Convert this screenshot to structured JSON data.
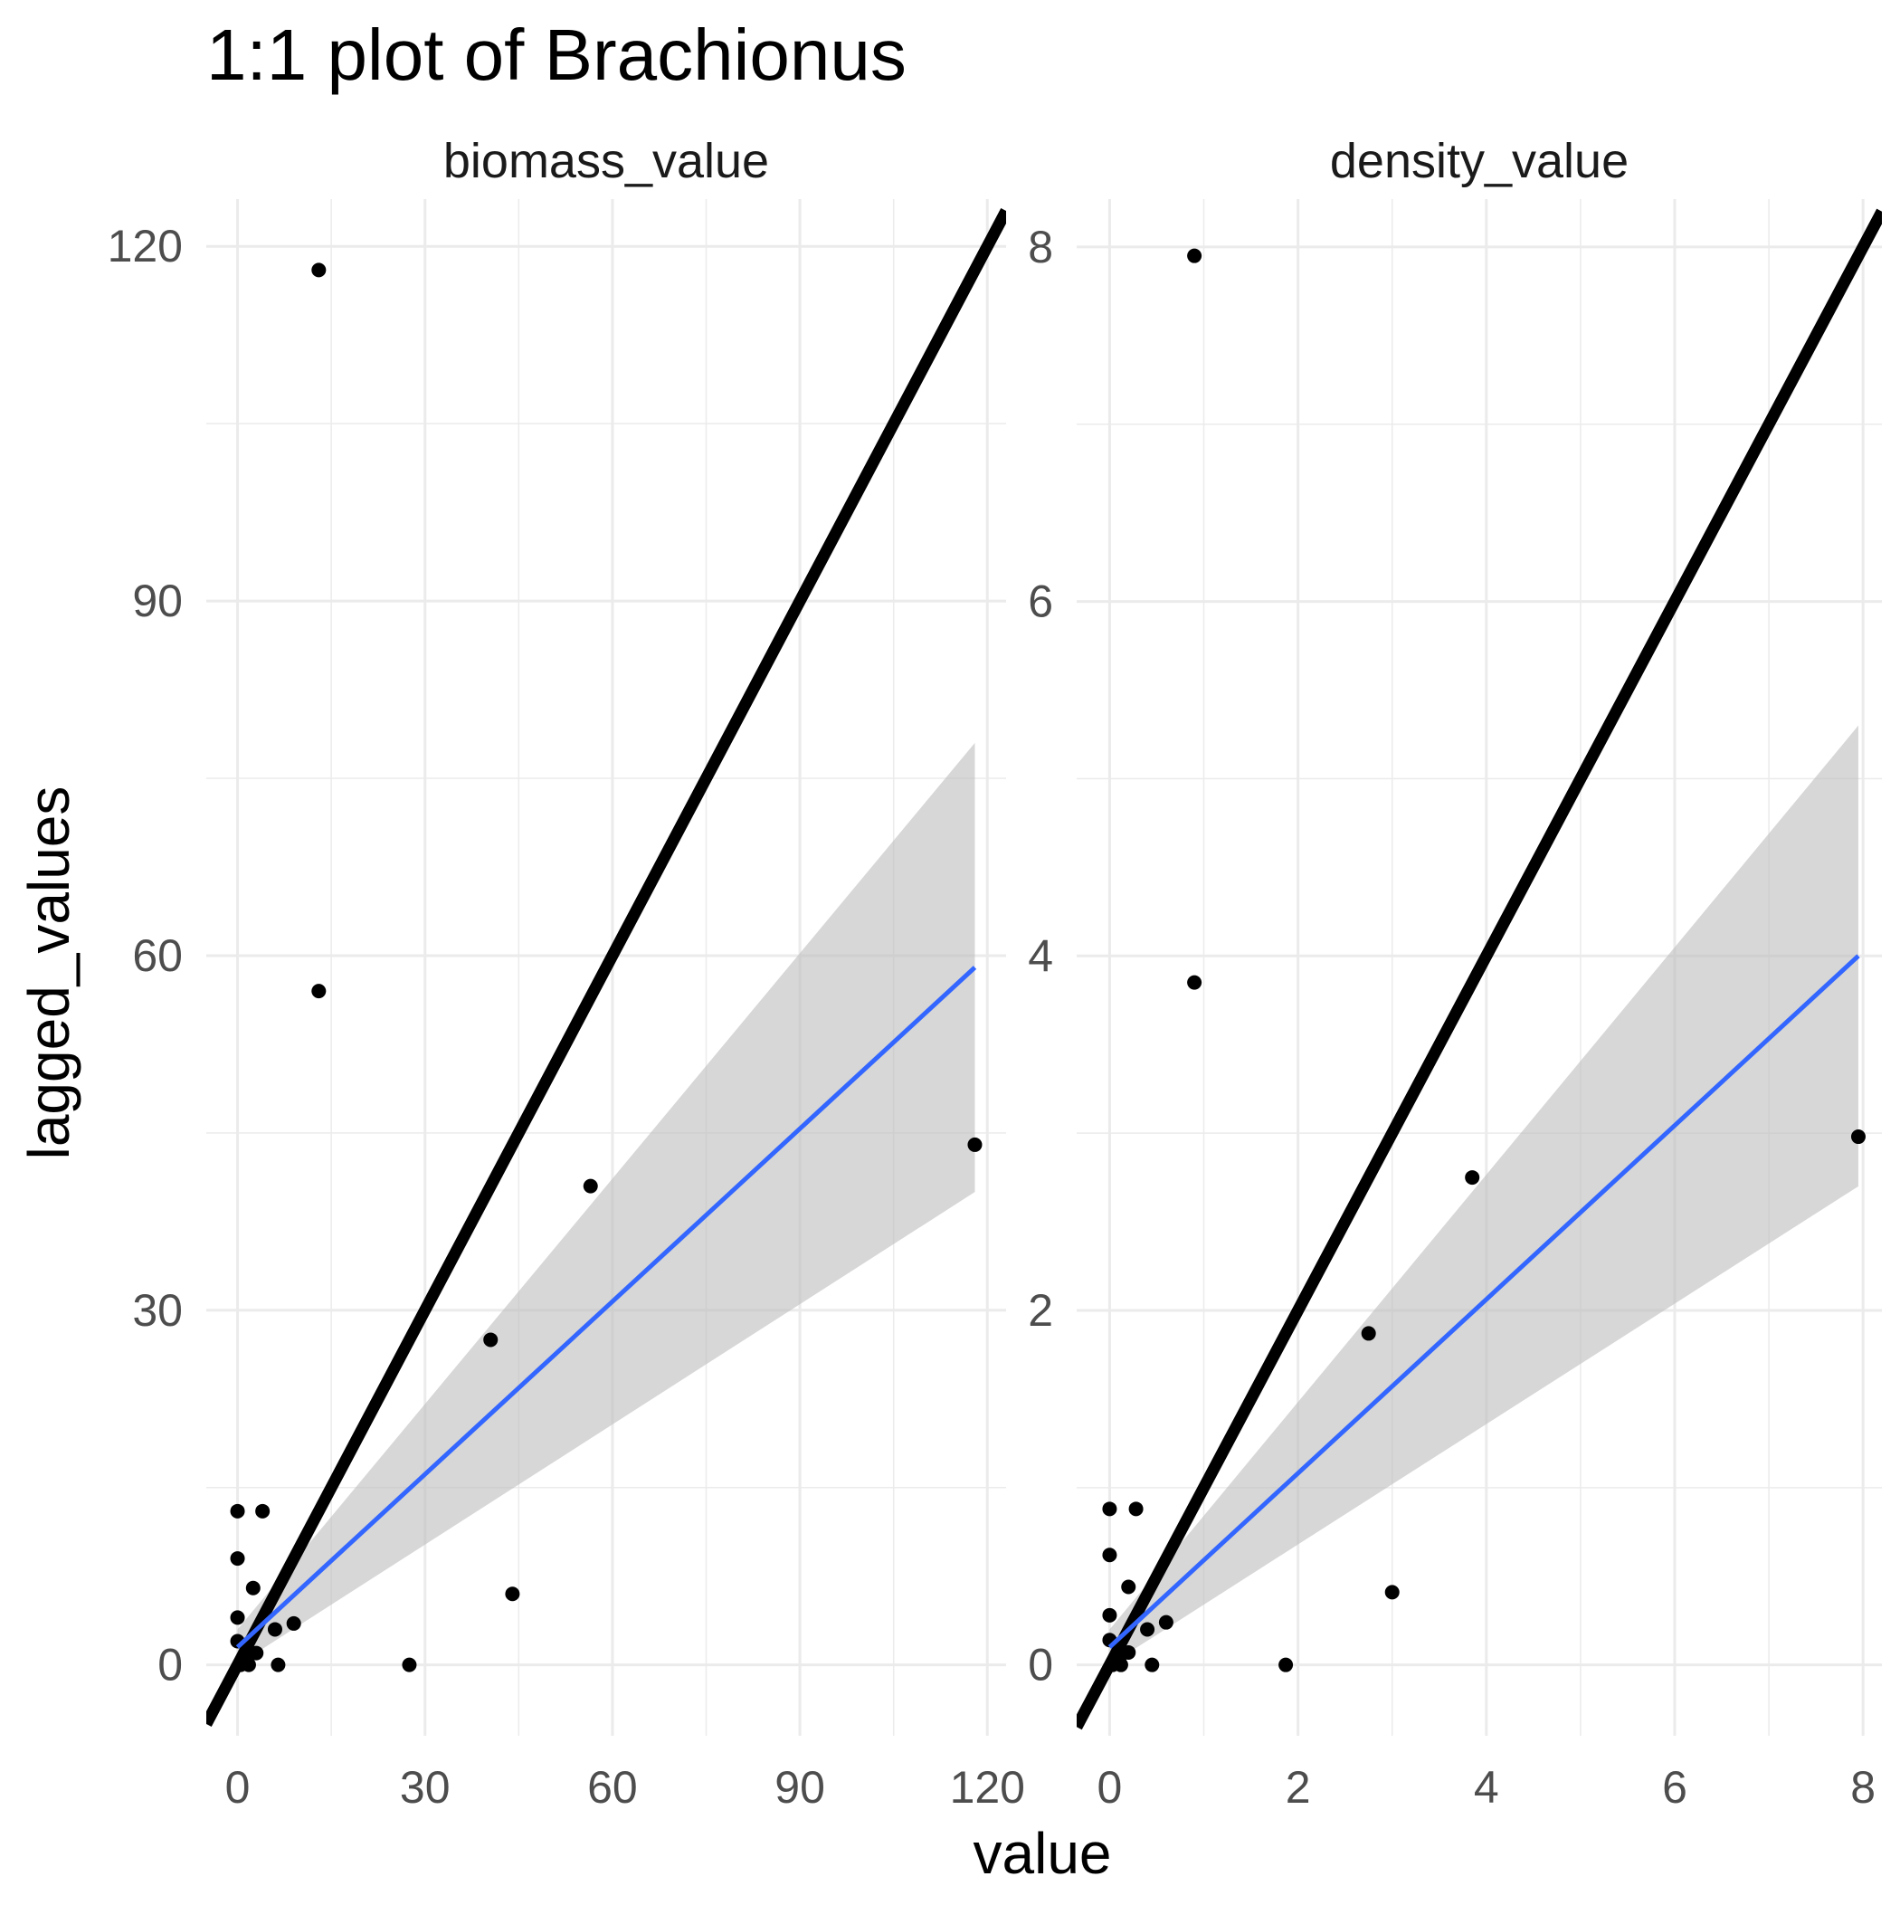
{
  "chart_data": {
    "type": "scatter",
    "title": "1:1 plot of Brachionus",
    "xlabel": "value",
    "ylabel": "lagged_values",
    "grid": true,
    "legend": "none",
    "colors": {
      "points": "#000000",
      "identity_line": "#000000",
      "fit_line": "#3366ff",
      "confidence_band": "#bdbdbd",
      "grid": "#ebebeb"
    },
    "panels": [
      {
        "name": "biomass_value",
        "xlim": [
          -5,
          123
        ],
        "ylim": [
          -6,
          124
        ],
        "x_ticks": [
          0,
          30,
          60,
          90,
          120
        ],
        "y_ticks": [
          0,
          30,
          60,
          90,
          120
        ],
        "x_tick_labels": [
          "0",
          "30",
          "60",
          "90",
          "120"
        ],
        "y_tick_labels": [
          "0",
          "30",
          "60",
          "90",
          "120"
        ],
        "points": [
          {
            "x": 13,
            "y": 118
          },
          {
            "x": 13,
            "y": 57
          },
          {
            "x": 56.5,
            "y": 40.5
          },
          {
            "x": 118,
            "y": 44
          },
          {
            "x": 40.5,
            "y": 27.5
          },
          {
            "x": 44,
            "y": 6
          },
          {
            "x": 27.5,
            "y": 0
          },
          {
            "x": 0,
            "y": 13
          },
          {
            "x": 4,
            "y": 13
          },
          {
            "x": 0,
            "y": 9
          },
          {
            "x": 2.5,
            "y": 6.5
          },
          {
            "x": 0,
            "y": 4
          },
          {
            "x": 9,
            "y": 3.5
          },
          {
            "x": 6,
            "y": 3
          },
          {
            "x": 0,
            "y": 2
          },
          {
            "x": 3,
            "y": 1
          },
          {
            "x": 1.5,
            "y": 0.5
          },
          {
            "x": 0.5,
            "y": 0
          },
          {
            "x": 1.8,
            "y": 0
          },
          {
            "x": 6.5,
            "y": 0
          }
        ],
        "identity_line": {
          "x": [
            -5,
            123
          ],
          "y": [
            -5,
            123
          ]
        },
        "fit": {
          "x": [
            0,
            118
          ],
          "y": [
            1.5,
            59
          ],
          "band_lower": [
            0,
            40
          ],
          "band_upper": [
            3,
            78
          ]
        }
      },
      {
        "name": "density_value",
        "xlim": [
          -0.35,
          8.2
        ],
        "ylim": [
          -0.4,
          8.27
        ],
        "x_ticks": [
          0,
          2,
          4,
          6,
          8
        ],
        "y_ticks": [
          0,
          2,
          4,
          6,
          8
        ],
        "x_tick_labels": [
          "0",
          "2",
          "4",
          "6",
          "8"
        ],
        "y_tick_labels": [
          "0",
          "2",
          "4",
          "6",
          "8"
        ],
        "points": [
          {
            "x": 0.9,
            "y": 7.95
          },
          {
            "x": 0.9,
            "y": 3.85
          },
          {
            "x": 3.85,
            "y": 2.75
          },
          {
            "x": 7.95,
            "y": 2.98
          },
          {
            "x": 2.75,
            "y": 1.87
          },
          {
            "x": 3.0,
            "y": 0.41
          },
          {
            "x": 1.87,
            "y": 0
          },
          {
            "x": 0,
            "y": 0.88
          },
          {
            "x": 0.28,
            "y": 0.88
          },
          {
            "x": 0,
            "y": 0.62
          },
          {
            "x": 0.2,
            "y": 0.44
          },
          {
            "x": 0,
            "y": 0.28
          },
          {
            "x": 0.6,
            "y": 0.24
          },
          {
            "x": 0.4,
            "y": 0.2
          },
          {
            "x": 0,
            "y": 0.14
          },
          {
            "x": 0.2,
            "y": 0.07
          },
          {
            "x": 0.1,
            "y": 0.03
          },
          {
            "x": 0.03,
            "y": 0
          },
          {
            "x": 0.12,
            "y": 0
          },
          {
            "x": 0.45,
            "y": 0
          }
        ],
        "identity_line": {
          "x": [
            -0.35,
            8.2
          ],
          "y": [
            -0.35,
            8.2
          ]
        },
        "fit": {
          "x": [
            0,
            7.95
          ],
          "y": [
            0.1,
            4.0
          ],
          "band_lower": [
            0,
            2.7
          ],
          "band_upper": [
            0.2,
            5.3
          ]
        }
      }
    ]
  }
}
